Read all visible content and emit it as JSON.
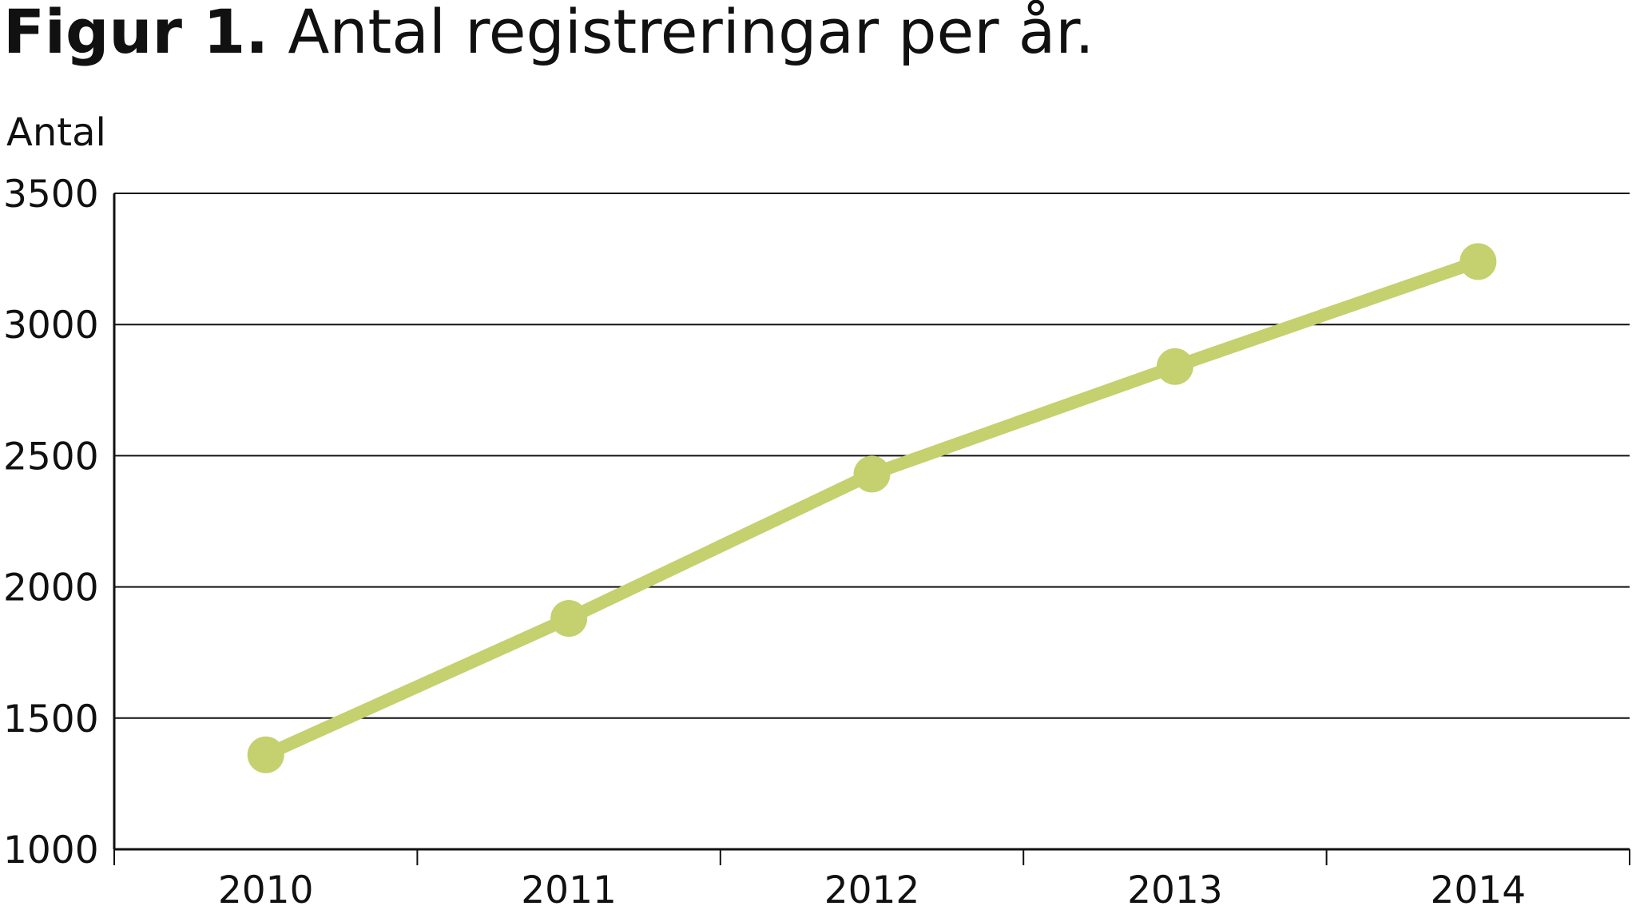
{
  "title": {
    "bold": "Figur 1.",
    "rest": " Antal registreringar per år."
  },
  "colors": {
    "series": "#c5d06e",
    "grid": "#111111",
    "text": "#111111"
  },
  "chart_data": {
    "type": "line",
    "title": "Figur 1. Antal registreringar per år.",
    "xlabel": "",
    "ylabel": "Antal",
    "x": [
      "2010",
      "2011",
      "2012",
      "2013",
      "2014"
    ],
    "series": [
      {
        "values": [
          1360,
          1880,
          2430,
          2840,
          3240
        ]
      }
    ],
    "ylim": [
      1000,
      3500
    ],
    "yticks": [
      1000,
      1500,
      2000,
      2500,
      3000,
      3500
    ],
    "grid": true,
    "legend": "none"
  }
}
